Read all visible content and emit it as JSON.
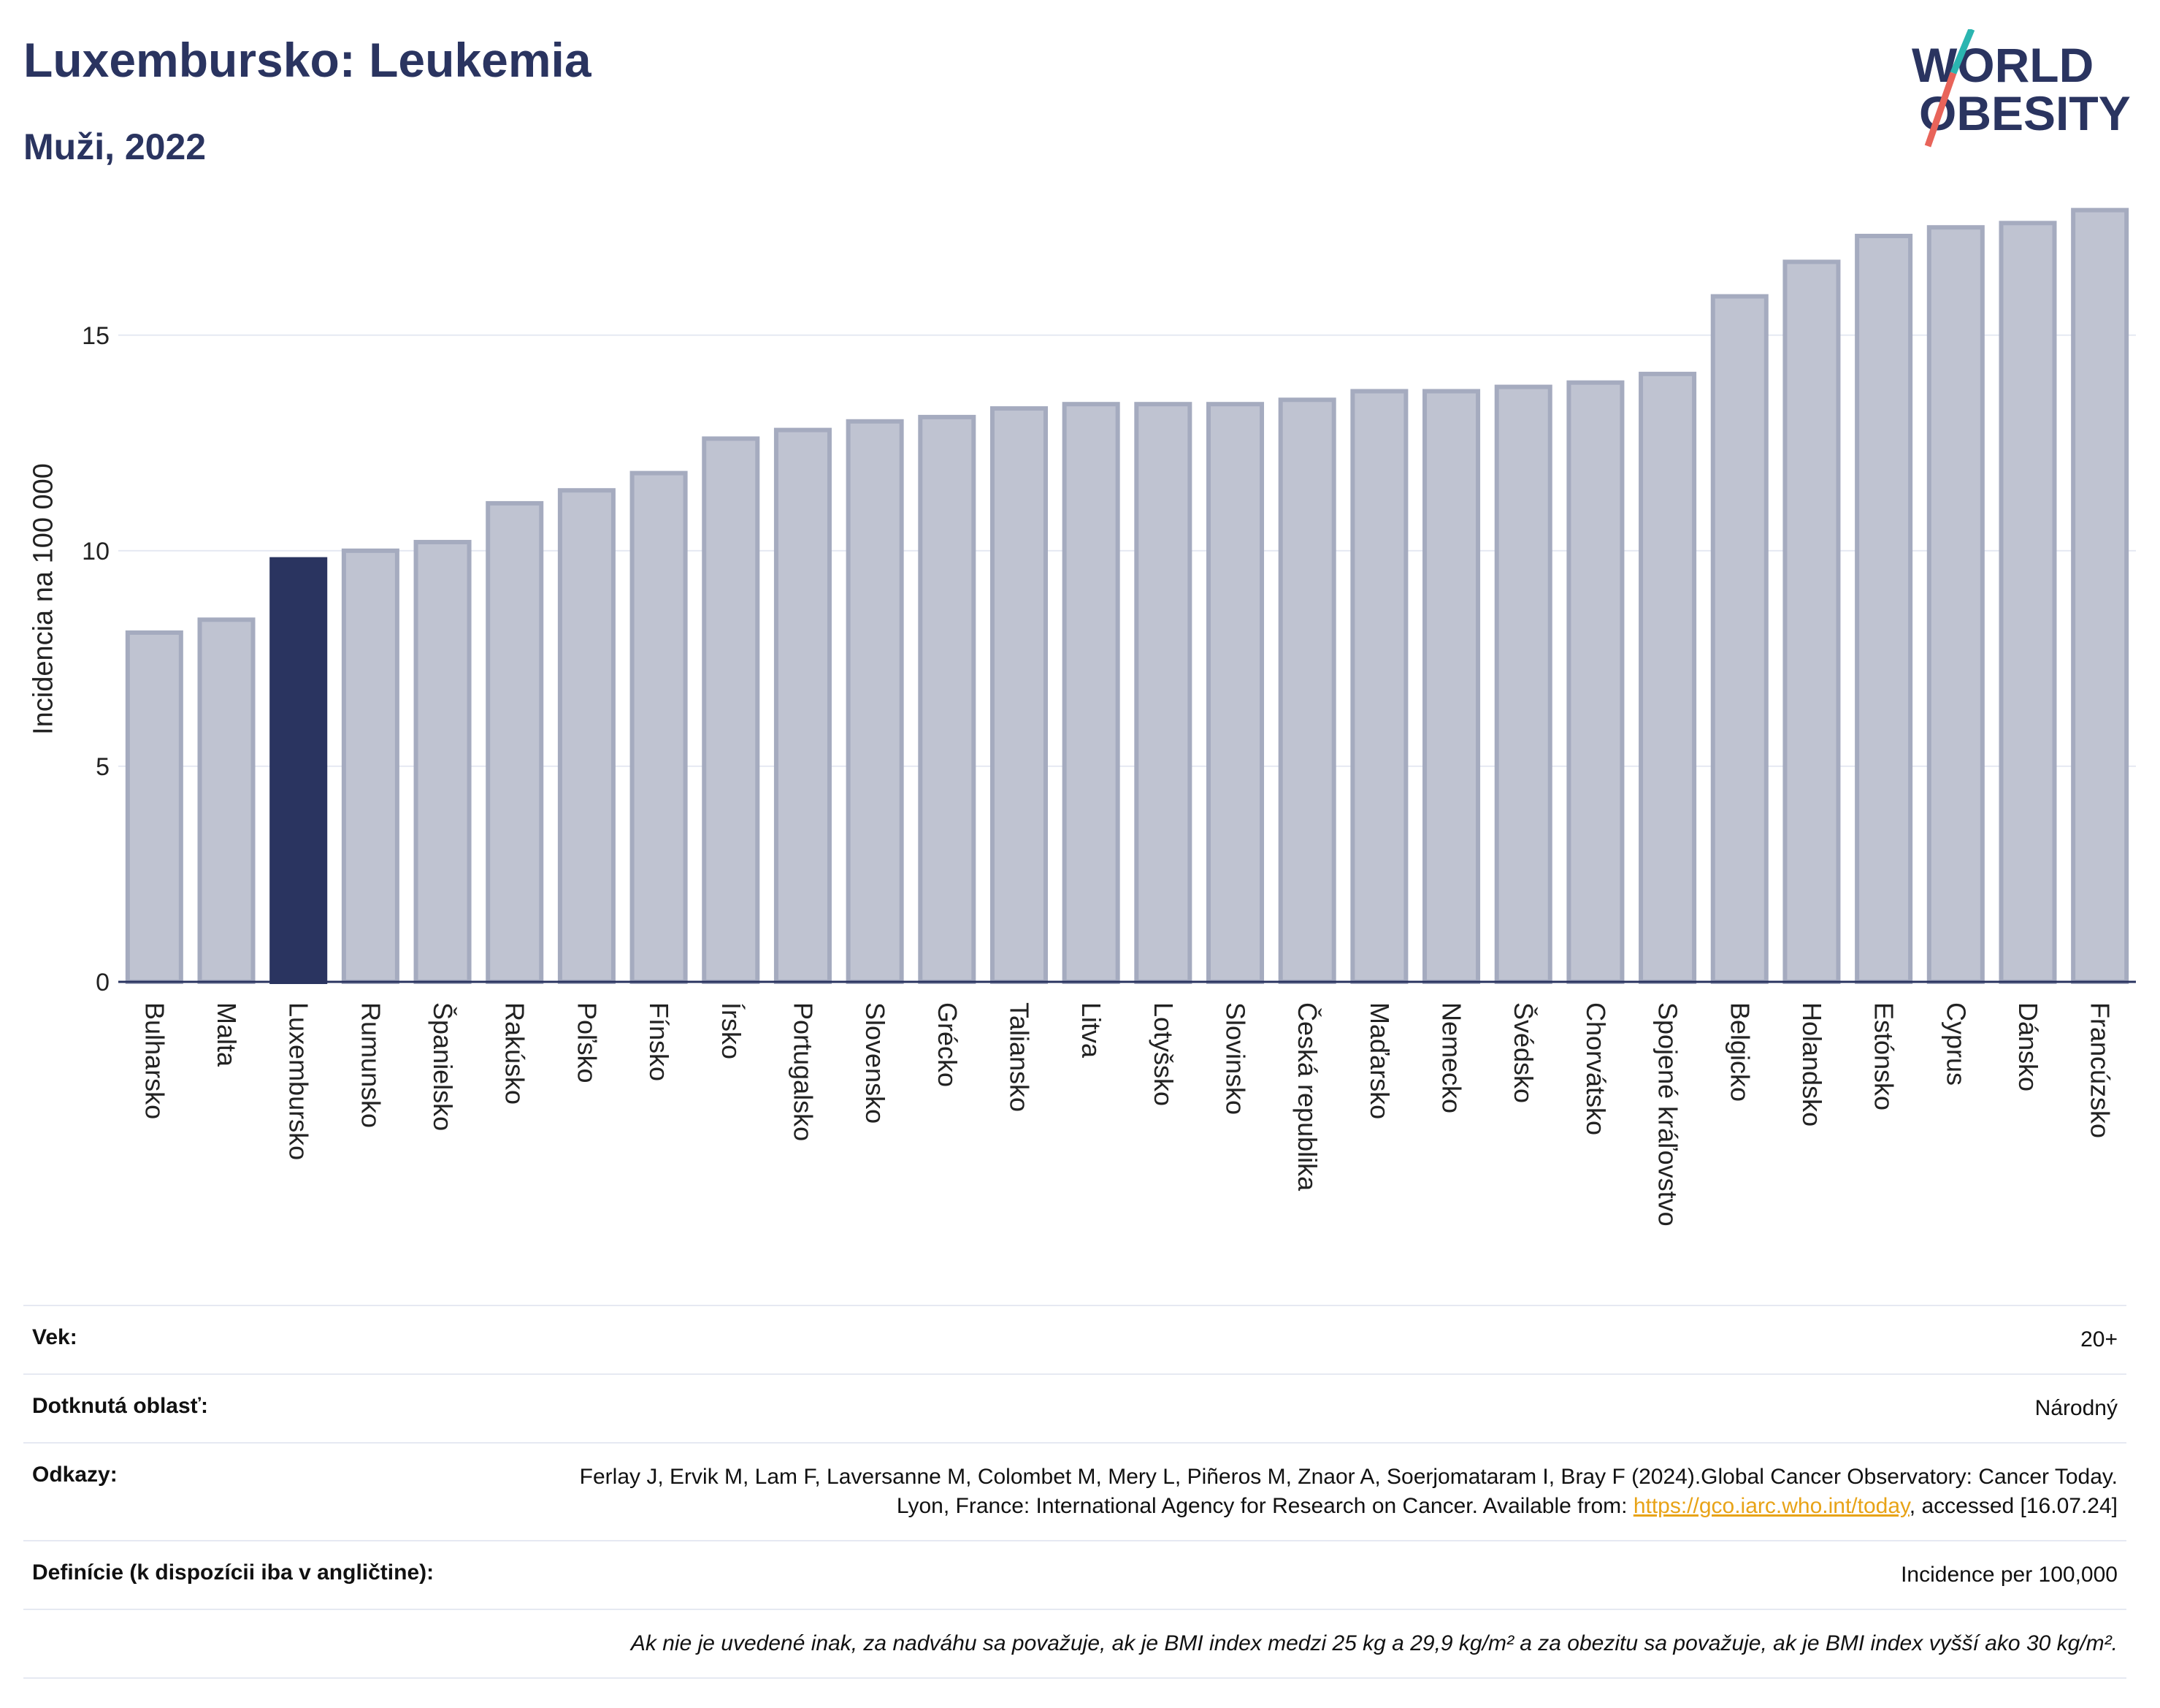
{
  "header": {
    "title": "Luxembursko: Leukemia",
    "subtitle": "Muži, 2022",
    "logo_line1": "WORLD",
    "logo_line2": "OBESITY"
  },
  "colors": {
    "bar": "#bfc3d1",
    "bar_border": "#a5abbf",
    "highlight": "#2a3460",
    "grid": "#e6e9f2",
    "logo_slash_teal": "#2bb5b0",
    "logo_slash_red": "#e8645a"
  },
  "chart_data": {
    "type": "bar",
    "ylabel": "Incidencia na 100 000",
    "xlabel": "",
    "ylim": [
      0,
      18.3
    ],
    "yticks": [
      0,
      5,
      10,
      15
    ],
    "grid": true,
    "highlight_category": "Luxembursko",
    "categories": [
      "Bulharsko",
      "Malta",
      "Luxembursko",
      "Rumunsko",
      "Španielsko",
      "Rakúsko",
      "Poľsko",
      "Fínsko",
      "Írsko",
      "Portugalsko",
      "Slovensko",
      "Grécko",
      "Taliansko",
      "Litva",
      "Lotyšsko",
      "Slovinsko",
      "Česká republika",
      "Maďarsko",
      "Nemecko",
      "Švédsko",
      "Chorvátsko",
      "Spojené kráľovstvo",
      "Belgicko",
      "Holandsko",
      "Estónsko",
      "Cyprus",
      "Dánsko",
      "Francúzsko"
    ],
    "values": [
      8.1,
      8.4,
      9.8,
      10.0,
      10.2,
      11.1,
      11.4,
      11.8,
      12.6,
      12.8,
      13.0,
      13.1,
      13.3,
      13.4,
      13.4,
      13.4,
      13.5,
      13.7,
      13.7,
      13.8,
      13.9,
      14.1,
      15.9,
      16.7,
      17.3,
      17.5,
      17.6,
      17.9
    ]
  },
  "footer": {
    "age_label": "Vek:",
    "age_value": "20+",
    "area_label": "Dotknutá oblasť:",
    "area_value": "Národný",
    "refs_label": "Odkazy:",
    "refs_text": "Ferlay J, Ervik M, Lam F, Laversanne M, Colombet M, Mery L, Piñeros M, Znaor A, Soerjomataram I, Bray F (2024).Global Cancer Observatory: Cancer Today. Lyon, France: International Agency for Research on Cancer. Available from: ",
    "refs_link": "https://gco.iarc.who.int/today",
    "refs_tail": ", accessed [16.07.24]",
    "def_label": "Definície (k dispozícii iba v angličtine):",
    "def_value": "Incidence per 100,000",
    "note": "Ak nie je uvedené inak, za nadváhu sa považuje, ak je BMI index medzi 25 kg a 29,9 kg/m² a za obezitu sa považuje, ak je BMI index vyšší ako 30 kg/m²."
  }
}
